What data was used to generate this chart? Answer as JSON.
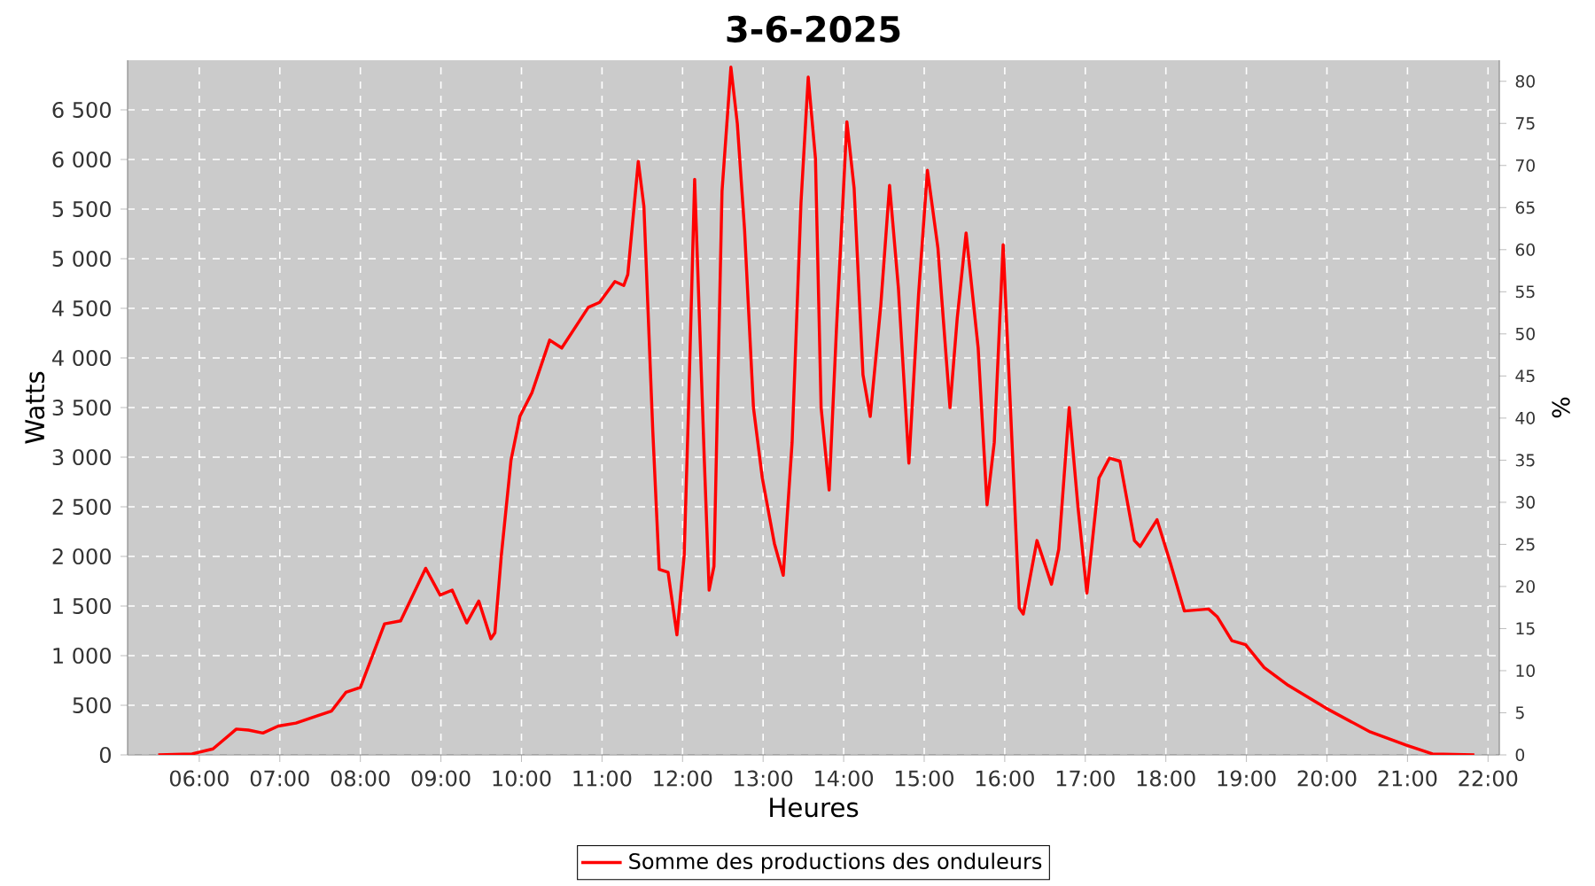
{
  "chart_data": {
    "type": "line",
    "title": "3-6-2025",
    "xlabel": "Heures",
    "ylabel": "Watts",
    "y2label": "%",
    "xlim": [
      5.11,
      22.14
    ],
    "ylim": [
      0,
      7000
    ],
    "y2lim": [
      0,
      82.5
    ],
    "xticks": [
      {
        "value": 6,
        "label": "06:00"
      },
      {
        "value": 7,
        "label": "07:00"
      },
      {
        "value": 8,
        "label": "08:00"
      },
      {
        "value": 9,
        "label": "09:00"
      },
      {
        "value": 10,
        "label": "10:00"
      },
      {
        "value": 11,
        "label": "11:00"
      },
      {
        "value": 12,
        "label": "12:00"
      },
      {
        "value": 13,
        "label": "13:00"
      },
      {
        "value": 14,
        "label": "14:00"
      },
      {
        "value": 15,
        "label": "15:00"
      },
      {
        "value": 16,
        "label": "16:00"
      },
      {
        "value": 17,
        "label": "17:00"
      },
      {
        "value": 18,
        "label": "18:00"
      },
      {
        "value": 19,
        "label": "19:00"
      },
      {
        "value": 20,
        "label": "20:00"
      },
      {
        "value": 21,
        "label": "21:00"
      },
      {
        "value": 22,
        "label": "22:00"
      }
    ],
    "yticks": [
      0,
      500,
      {
        "value": 1000,
        "label": "1 000"
      },
      {
        "value": 1500,
        "label": "1 500"
      },
      {
        "value": 2000,
        "label": "2 000"
      },
      {
        "value": 2500,
        "label": "2 500"
      },
      {
        "value": 3000,
        "label": "3 000"
      },
      {
        "value": 3500,
        "label": "3 500"
      },
      {
        "value": 4000,
        "label": "4 000"
      },
      {
        "value": 4500,
        "label": "4 500"
      },
      {
        "value": 5000,
        "label": "5 000"
      },
      {
        "value": 5500,
        "label": "5 500"
      },
      {
        "value": 6000,
        "label": "6 000"
      },
      {
        "value": 6500,
        "label": "6 500"
      }
    ],
    "y2ticks": [
      0,
      5,
      10,
      15,
      20,
      25,
      30,
      35,
      40,
      45,
      50,
      55,
      60,
      65,
      70,
      75,
      80
    ],
    "grid": true,
    "legend": "bottom",
    "marker": "none",
    "line_style": "solid",
    "series": [
      {
        "name": "Somme des productions des onduleurs",
        "color": "#ff0000",
        "x": [
          5.49,
          5.91,
          6.17,
          6.46,
          6.61,
          6.79,
          6.98,
          7.2,
          7.45,
          7.64,
          7.82,
          8.0,
          8.3,
          8.5,
          8.81,
          8.99,
          9.14,
          9.32,
          9.47,
          9.62,
          9.67,
          9.75,
          9.87,
          9.98,
          10.13,
          10.35,
          10.5,
          10.83,
          10.97,
          11.16,
          11.27,
          11.32,
          11.45,
          11.52,
          11.63,
          11.71,
          11.82,
          11.93,
          12.02,
          12.07,
          12.15,
          12.27,
          12.33,
          12.39,
          12.49,
          12.6,
          12.68,
          12.77,
          12.88,
          12.99,
          13.14,
          13.25,
          13.36,
          13.47,
          13.56,
          13.65,
          13.72,
          13.82,
          13.91,
          14.04,
          14.13,
          14.24,
          14.33,
          14.46,
          14.57,
          14.68,
          14.81,
          14.93,
          15.04,
          15.17,
          15.32,
          15.41,
          15.52,
          15.67,
          15.78,
          15.87,
          15.98,
          16.09,
          16.18,
          16.23,
          16.4,
          16.58,
          16.67,
          16.8,
          16.91,
          17.02,
          17.17,
          17.3,
          17.43,
          17.61,
          17.68,
          17.89,
          18.05,
          18.23,
          18.53,
          18.64,
          18.82,
          18.99,
          19.22,
          19.52,
          19.99,
          20.54,
          20.98,
          21.31,
          21.83
        ],
        "values": [
          0,
          10,
          60,
          260,
          250,
          220,
          290,
          320,
          390,
          440,
          630,
          680,
          1320,
          1350,
          1880,
          1610,
          1660,
          1330,
          1550,
          1170,
          1230,
          2010,
          2970,
          3410,
          3650,
          4180,
          4100,
          4510,
          4560,
          4770,
          4730,
          4840,
          5980,
          5530,
          3270,
          1870,
          1840,
          1210,
          2010,
          3380,
          5800,
          2970,
          1660,
          1900,
          5680,
          6930,
          6360,
          5290,
          3500,
          2790,
          2130,
          1810,
          3150,
          5560,
          6830,
          6010,
          3500,
          2670,
          4280,
          6380,
          5710,
          3830,
          3410,
          4520,
          5740,
          4700,
          2940,
          4640,
          5890,
          5110,
          3500,
          4400,
          5260,
          4100,
          2520,
          3150,
          5140,
          3150,
          1480,
          1420,
          2160,
          1720,
          2070,
          3500,
          2490,
          1630,
          2790,
          2990,
          2960,
          2160,
          2100,
          2370,
          1950,
          1450,
          1470,
          1390,
          1150,
          1110,
          880,
          700,
          470,
          230,
          100,
          10,
          0
        ]
      }
    ]
  }
}
